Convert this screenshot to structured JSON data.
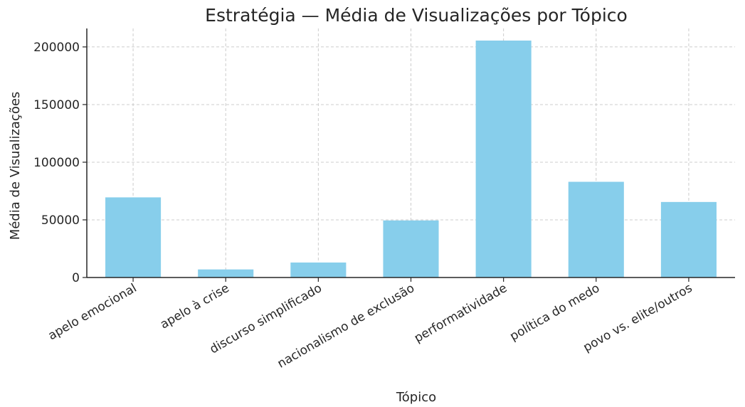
{
  "chart_data": {
    "type": "bar",
    "title": "Estratégia — Média de Visualizações por Tópico",
    "xlabel": "Tópico",
    "ylabel": "Média de Visualizações",
    "categories": [
      "apelo emocional",
      "apelo à crise",
      "discurso simplificado",
      "nacionalismo de exclusão",
      "performatividade",
      "política do medo",
      "povo vs. elite/outros"
    ],
    "values": [
      69500,
      7000,
      13000,
      49500,
      205500,
      83000,
      65500
    ],
    "ylim": [
      0,
      216000
    ],
    "yticks": [
      0,
      50000,
      100000,
      150000,
      200000
    ],
    "ytick_labels": [
      "0",
      "50000",
      "100000",
      "150000",
      "200000"
    ],
    "grid": true,
    "bar_color": "#87ceeb"
  }
}
